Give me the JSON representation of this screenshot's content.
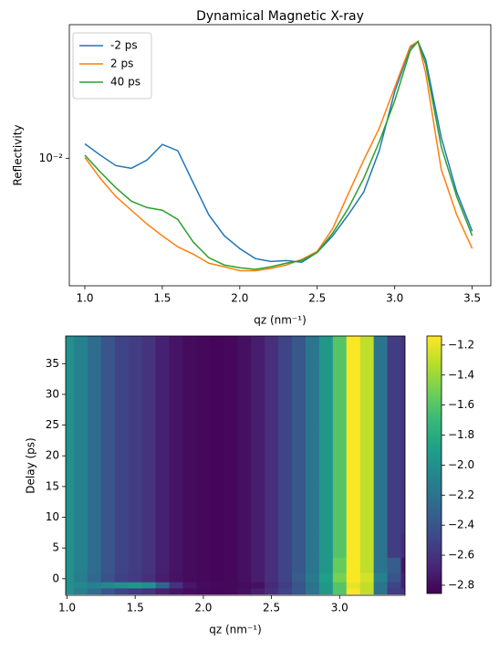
{
  "chart_data": [
    {
      "type": "line",
      "title": "Dynamical Magnetic X-ray",
      "xlabel": "qz (nm⁻¹)",
      "ylabel": "Reflectivity",
      "x": [
        1.0,
        1.1,
        1.2,
        1.3,
        1.4,
        1.5,
        1.6,
        1.7,
        1.8,
        1.9,
        2.0,
        2.1,
        2.2,
        2.3,
        2.4,
        2.5,
        2.6,
        2.7,
        2.8,
        2.9,
        3.0,
        3.1,
        3.15,
        3.2,
        3.3,
        3.4,
        3.5
      ],
      "series": [
        {
          "name": "-2 ps",
          "color": "#1f77b4",
          "values": [
            0.012,
            0.0104,
            0.00912,
            0.00881,
            0.00977,
            0.0119,
            0.011,
            0.00733,
            0.0049,
            0.00376,
            0.0032,
            0.00282,
            0.00272,
            0.00275,
            0.00269,
            0.00305,
            0.00376,
            0.0049,
            0.00653,
            0.011,
            0.0232,
            0.0403,
            0.0437,
            0.0347,
            0.013,
            0.00653,
            0.00398
          ]
        },
        {
          "name": "2 ps",
          "color": "#ff7f0e",
          "values": [
            0.0101,
            0.00776,
            0.00617,
            0.00519,
            0.00437,
            0.00376,
            0.00327,
            0.00298,
            0.00266,
            0.00254,
            0.00242,
            0.00242,
            0.00249,
            0.0026,
            0.00279,
            0.00309,
            0.00412,
            0.00638,
            0.00977,
            0.0146,
            0.0245,
            0.0412,
            0.0437,
            0.0292,
            0.0087,
            0.0049,
            0.0032
          ]
        },
        {
          "name": "40 ps",
          "color": "#2ca02c",
          "values": [
            0.0104,
            0.00841,
            0.0069,
            0.00582,
            0.00537,
            0.00519,
            0.00462,
            0.00347,
            0.00285,
            0.0026,
            0.00251,
            0.00246,
            0.00254,
            0.00266,
            0.00275,
            0.00305,
            0.00389,
            0.00531,
            0.00776,
            0.0123,
            0.0207,
            0.0389,
            0.0437,
            0.0327,
            0.0116,
            0.00617,
            0.00376
          ]
        }
      ],
      "xlim": [
        0.9,
        3.62
      ],
      "ylim": [
        0.002,
        0.054
      ],
      "yscale": "log",
      "xticks": [
        {
          "value": 1,
          "label": "1.0"
        },
        1.5,
        {
          "value": 2,
          "label": "2.0"
        },
        2.5,
        {
          "value": 3,
          "label": "3.0"
        },
        3.5
      ],
      "yticks": [
        {
          "value": 0.01,
          "label": "10⁻²"
        }
      ],
      "legend": "upper left"
    },
    {
      "type": "heatmap",
      "xlabel": "qz (nm⁻¹)",
      "ylabel": "Delay (ps)",
      "x": [
        1.0,
        1.1,
        1.2,
        1.3,
        1.4,
        1.5,
        1.6,
        1.7,
        1.8,
        1.9,
        2.0,
        2.1,
        2.2,
        2.3,
        2.4,
        2.5,
        2.6,
        2.7,
        2.8,
        2.9,
        3.0,
        3.1,
        3.2,
        3.3,
        3.4,
        3.5
      ],
      "y": [
        -2,
        -1,
        0,
        2,
        5,
        10,
        20,
        30,
        40
      ],
      "z": [
        [
          -2.0,
          -2.1,
          -2.25,
          -2.4,
          -2.5,
          -2.55,
          -2.6,
          -2.7,
          -2.76,
          -2.8,
          -2.82,
          -2.83,
          -2.82,
          -2.78,
          -2.72,
          -2.62,
          -2.5,
          -2.38,
          -2.18,
          -1.95,
          -1.6,
          -1.15,
          -1.3,
          -2.2,
          -2.55,
          -2.6
        ],
        [
          -2.0,
          -2.05,
          -2.1,
          -2.05,
          -2.0,
          -1.95,
          -2.0,
          -2.3,
          -2.6,
          -2.75,
          -2.8,
          -2.82,
          -2.82,
          -2.8,
          -2.78,
          -2.65,
          -2.55,
          -2.4,
          -2.2,
          -1.95,
          -1.6,
          -1.2,
          -1.3,
          -2.2,
          -2.5,
          -2.7
        ],
        [
          -2.0,
          -2.12,
          -2.28,
          -2.42,
          -2.52,
          -2.56,
          -2.62,
          -2.72,
          -2.77,
          -2.8,
          -2.82,
          -2.83,
          -2.82,
          -2.78,
          -2.72,
          -2.62,
          -2.5,
          -2.35,
          -2.15,
          -1.9,
          -1.5,
          -1.15,
          -1.25,
          -2.1,
          -2.4,
          -2.7
        ],
        [
          -2.0,
          -2.1,
          -2.25,
          -2.4,
          -2.5,
          -2.55,
          -2.6,
          -2.7,
          -2.76,
          -2.8,
          -2.82,
          -2.83,
          -2.82,
          -2.78,
          -2.72,
          -2.62,
          -2.5,
          -2.38,
          -2.18,
          -1.95,
          -1.55,
          -1.15,
          -1.3,
          -2.2,
          -2.35,
          -2.75
        ],
        [
          -2.0,
          -2.1,
          -2.25,
          -2.4,
          -2.5,
          -2.55,
          -2.6,
          -2.7,
          -2.76,
          -2.8,
          -2.82,
          -2.83,
          -2.82,
          -2.78,
          -2.72,
          -2.62,
          -2.5,
          -2.38,
          -2.18,
          -1.95,
          -1.6,
          -1.15,
          -1.3,
          -2.2,
          -2.55,
          -2.65
        ],
        [
          -2.0,
          -2.1,
          -2.25,
          -2.4,
          -2.5,
          -2.55,
          -2.6,
          -2.7,
          -2.76,
          -2.8,
          -2.82,
          -2.83,
          -2.82,
          -2.78,
          -2.72,
          -2.62,
          -2.5,
          -2.38,
          -2.18,
          -1.95,
          -1.6,
          -1.15,
          -1.3,
          -2.2,
          -2.55,
          -2.6
        ],
        [
          -2.0,
          -2.1,
          -2.25,
          -2.4,
          -2.5,
          -2.55,
          -2.6,
          -2.7,
          -2.76,
          -2.8,
          -2.82,
          -2.83,
          -2.82,
          -2.78,
          -2.72,
          -2.62,
          -2.5,
          -2.38,
          -2.18,
          -1.95,
          -1.6,
          -1.15,
          -1.3,
          -2.2,
          -2.55,
          -2.6
        ],
        [
          -2.0,
          -2.1,
          -2.25,
          -2.4,
          -2.5,
          -2.55,
          -2.6,
          -2.7,
          -2.76,
          -2.8,
          -2.82,
          -2.83,
          -2.82,
          -2.78,
          -2.72,
          -2.62,
          -2.5,
          -2.38,
          -2.18,
          -1.95,
          -1.6,
          -1.15,
          -1.3,
          -2.2,
          -2.55,
          -2.6
        ],
        [
          -2.0,
          -2.1,
          -2.25,
          -2.4,
          -2.5,
          -2.55,
          -2.6,
          -2.7,
          -2.76,
          -2.8,
          -2.82,
          -2.83,
          -2.82,
          -2.78,
          -2.72,
          -2.62,
          -2.5,
          -2.38,
          -2.18,
          -1.95,
          -1.6,
          -1.15,
          -1.3,
          -2.2,
          -2.55,
          -2.6
        ]
      ],
      "xlim": [
        0.99,
        3.48
      ],
      "ylim": [
        -2.7,
        39.5
      ],
      "xticks": [
        {
          "value": 1,
          "label": "1.0"
        },
        1.5,
        {
          "value": 2,
          "label": "2.0"
        },
        2.5,
        {
          "value": 3,
          "label": "3.0"
        }
      ],
      "yticks": [
        0,
        5,
        10,
        15,
        20,
        25,
        30,
        35
      ],
      "colormap": "viridis",
      "clim": [
        -2.855,
        -1.14
      ],
      "cticks": [
        {
          "value": -1.2,
          "label": "−1.2"
        },
        {
          "value": -1.4,
          "label": "−1.4"
        },
        {
          "value": -1.6,
          "label": "−1.6"
        },
        {
          "value": -1.8,
          "label": "−1.8"
        },
        {
          "value": -2.0,
          "label": "−2.0"
        },
        {
          "value": -2.2,
          "label": "−2.2"
        },
        {
          "value": -2.4,
          "label": "−2.4"
        },
        {
          "value": -2.6,
          "label": "−2.6"
        },
        {
          "value": -2.8,
          "label": "−2.8"
        }
      ]
    }
  ]
}
